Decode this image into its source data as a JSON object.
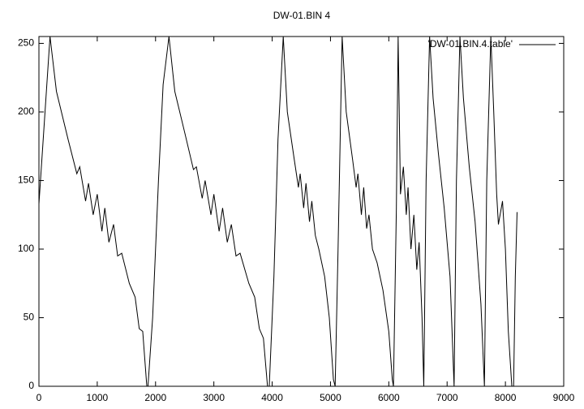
{
  "chart_data": {
    "type": "line",
    "title": "DW-01.BIN 4",
    "x": [
      0,
      190,
      300,
      500,
      650,
      700,
      800,
      850,
      930,
      1000,
      1080,
      1130,
      1200,
      1280,
      1350,
      1420,
      1550,
      1650,
      1720,
      1780,
      1850,
      1870,
      1950,
      2050,
      2130,
      2230,
      2330,
      2500,
      2650,
      2700,
      2800,
      2850,
      2950,
      3000,
      3090,
      3150,
      3230,
      3300,
      3380,
      3450,
      3600,
      3700,
      3780,
      3850,
      3920,
      3950,
      4030,
      4100,
      4190,
      4260,
      4380,
      4450,
      4480,
      4540,
      4580,
      4640,
      4680,
      4740,
      4800,
      4900,
      4980,
      5050,
      5080,
      5130,
      5200,
      5270,
      5380,
      5440,
      5470,
      5530,
      5570,
      5620,
      5660,
      5720,
      5800,
      5900,
      6000,
      6060,
      6080,
      6130,
      6160,
      6200,
      6250,
      6300,
      6330,
      6380,
      6430,
      6480,
      6520,
      6570,
      6600,
      6640,
      6700,
      6760,
      6850,
      6950,
      7050,
      7120,
      7160,
      7220,
      7280,
      7380,
      7480,
      7580,
      7640,
      7680,
      7750,
      7800,
      7850,
      7880,
      7950,
      8000,
      8050,
      8110,
      8140,
      8170,
      8200
    ],
    "series": [
      {
        "name": "'DW-01.BIN.4.table'",
        "color": "#000000",
        "values": [
          133,
          255,
          215,
          180,
          155,
          160,
          135,
          148,
          125,
          140,
          113,
          130,
          105,
          118,
          95,
          97,
          75,
          65,
          42,
          40,
          0,
          0,
          50,
          150,
          220,
          255,
          215,
          185,
          158,
          160,
          137,
          150,
          125,
          140,
          113,
          130,
          105,
          118,
          95,
          97,
          75,
          65,
          42,
          35,
          0,
          0,
          80,
          180,
          255,
          200,
          165,
          145,
          155,
          130,
          148,
          120,
          135,
          110,
          100,
          80,
          50,
          5,
          0,
          100,
          255,
          200,
          165,
          145,
          155,
          125,
          145,
          115,
          125,
          100,
          90,
          70,
          40,
          5,
          0,
          130,
          255,
          140,
          160,
          125,
          145,
          100,
          125,
          85,
          105,
          50,
          0,
          150,
          255,
          210,
          170,
          130,
          80,
          0,
          150,
          255,
          210,
          160,
          120,
          60,
          0,
          150,
          255,
          200,
          140,
          118,
          135,
          100,
          40,
          0,
          0,
          80,
          127
        ]
      }
    ],
    "xlim": [
      0,
      9000
    ],
    "xticks": [
      0,
      1000,
      2000,
      3000,
      4000,
      5000,
      6000,
      7000,
      8000,
      9000
    ],
    "ylim": [
      0,
      255
    ],
    "yticks": [
      0,
      50,
      100,
      150,
      200,
      250
    ],
    "legend": "upper right"
  }
}
